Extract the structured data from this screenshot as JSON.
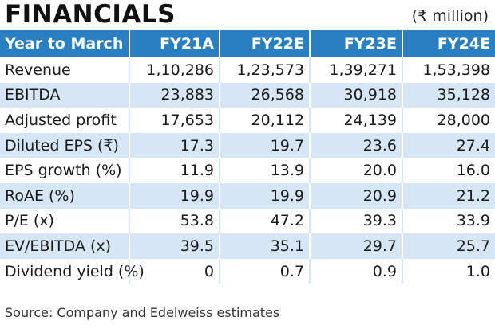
{
  "title": "FINANCIALS",
  "unit": "(₹ million)",
  "table": {
    "headers": [
      "Year to March",
      "FY21A",
      "FY22E",
      "FY23E",
      "FY24E"
    ],
    "rows": [
      {
        "label": "Revenue",
        "values": [
          "1,10,286",
          "1,23,573",
          "1,39,271",
          "1,53,398"
        ]
      },
      {
        "label": "EBITDA",
        "values": [
          "23,883",
          "26,568",
          "30,918",
          "35,128"
        ]
      },
      {
        "label": "Adjusted profit",
        "values": [
          "17,653",
          "20,112",
          "24,139",
          "28,000"
        ]
      },
      {
        "label": "Diluted EPS (₹)",
        "values": [
          "17.3",
          "19.7",
          "23.6",
          "27.4"
        ]
      },
      {
        "label": "EPS growth (%)",
        "values": [
          "11.9",
          "13.9",
          "20.0",
          "16.0"
        ]
      },
      {
        "label": "RoAE (%)",
        "values": [
          "19.9",
          "19.9",
          "20.9",
          "21.2"
        ]
      },
      {
        "label": "P/E (x)",
        "values": [
          "53.8",
          "47.2",
          "39.3",
          "33.9"
        ]
      },
      {
        "label": "EV/EBITDA (x)",
        "values": [
          "39.5",
          "35.1",
          "29.7",
          "25.7"
        ]
      },
      {
        "label": "Dividend yield (%)",
        "values": [
          "0",
          "0.7",
          "0.9",
          "1.0"
        ]
      }
    ]
  },
  "source": "Source: Company and Edelweiss estimates",
  "colors": {
    "header_bg": "#2a7fc2",
    "alt_row_bg": "#d6e6f4",
    "header_text": "#ffffff"
  }
}
